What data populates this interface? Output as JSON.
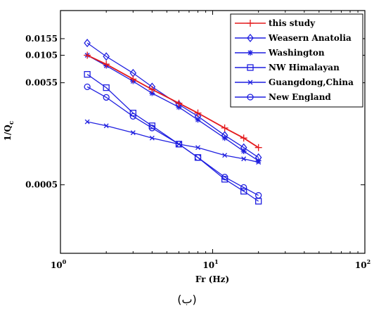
{
  "caption": "(ب)",
  "chart_data": {
    "type": "line",
    "xlabel": "Fr (Hz)",
    "ylabel": "1/Q",
    "ylabel_subscript": "c",
    "xscale": "log",
    "yscale": "log",
    "xlim": [
      1,
      100
    ],
    "ylim": [
      0.0001,
      0.03
    ],
    "x_ticks": [
      {
        "value": 1,
        "base": "10",
        "exp": "0"
      },
      {
        "value": 10,
        "base": "10",
        "exp": "1"
      },
      {
        "value": 100,
        "base": "10",
        "exp": "2"
      }
    ],
    "y_ticks": [
      {
        "value": 0.0155,
        "label": "0.0155"
      },
      {
        "value": 0.0105,
        "label": "0.0105"
      },
      {
        "value": 0.0055,
        "label": "0.0055"
      },
      {
        "value": 0.0005,
        "label": "0.0005"
      }
    ],
    "legend_position": "top-right",
    "x": [
      1.5,
      2,
      3,
      4,
      6,
      8,
      12,
      16,
      20
    ],
    "series": [
      {
        "name": "this study",
        "color": "#e41a1c",
        "marker": "plus",
        "values": [
          0.0105,
          0.0085,
          0.006,
          0.0047,
          0.0034,
          0.0027,
          0.0019,
          0.0015,
          0.0012
        ]
      },
      {
        "name": "Weasern Anatolia",
        "color": "#1f1fe0",
        "marker": "diamond",
        "values": [
          0.014,
          0.0102,
          0.0069,
          0.005,
          0.0033,
          0.0025,
          0.0016,
          0.0012,
          0.00095
        ]
      },
      {
        "name": "Washington",
        "color": "#1f1fe0",
        "marker": "star",
        "values": [
          0.0105,
          0.0082,
          0.0057,
          0.0043,
          0.0031,
          0.0023,
          0.0015,
          0.0011,
          0.00088
        ]
      },
      {
        "name": "NW Himalayan",
        "color": "#1f1fe0",
        "marker": "square",
        "values": [
          0.0067,
          0.0049,
          0.0027,
          0.002,
          0.0013,
          0.00095,
          0.00057,
          0.00043,
          0.00034
        ]
      },
      {
        "name": "Guangdong,China",
        "color": "#1f1fe0",
        "marker": "x",
        "values": [
          0.0022,
          0.002,
          0.0017,
          0.0015,
          0.0013,
          0.0012,
          0.001,
          0.00092,
          0.00085
        ]
      },
      {
        "name": "New England",
        "color": "#1f1fe0",
        "marker": "circle",
        "values": [
          0.005,
          0.0039,
          0.0025,
          0.0019,
          0.0013,
          0.00095,
          0.0006,
          0.00047,
          0.00039
        ]
      }
    ]
  }
}
